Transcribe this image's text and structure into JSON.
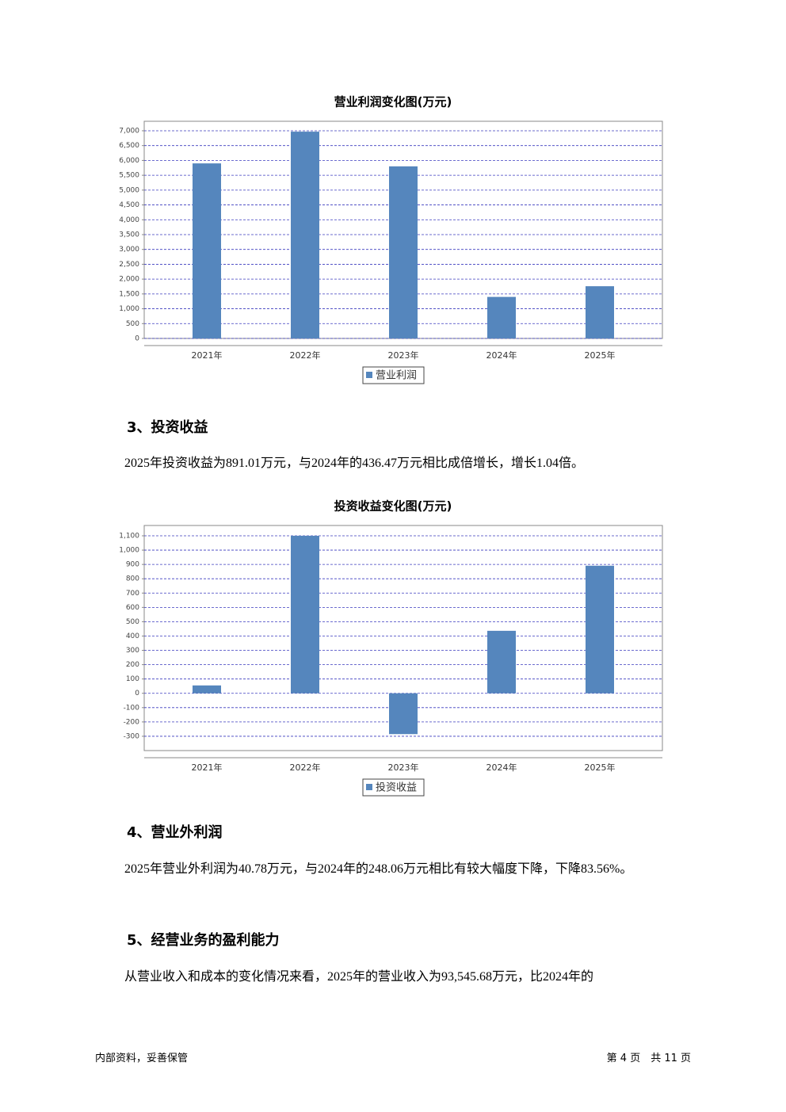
{
  "chart_data": [
    {
      "type": "bar",
      "title": "营业利润变化图(万元)",
      "categories": [
        "2021年",
        "2022年",
        "2023年",
        "2024年",
        "2025年"
      ],
      "series": [
        {
          "name": "营业利润",
          "color": "#5586bd",
          "values": [
            5900,
            6970,
            5800,
            1400,
            1760
          ]
        }
      ],
      "ylim": [
        0,
        7320
      ],
      "yticks": [
        0,
        500,
        {
          "value": 1000,
          "label": "1,000"
        },
        {
          "value": 1500,
          "label": "1,500"
        },
        {
          "value": 2000,
          "label": "2,000"
        },
        {
          "value": 2500,
          "label": "2,500"
        },
        {
          "value": 3000,
          "label": "3,000"
        },
        {
          "value": 3500,
          "label": "3,500"
        },
        {
          "value": 4000,
          "label": "4,000"
        },
        {
          "value": 4500,
          "label": "4,500"
        },
        {
          "value": 5000,
          "label": "5,000"
        },
        {
          "value": 5500,
          "label": "5,500"
        },
        {
          "value": 6000,
          "label": "6,000"
        },
        {
          "value": 6500,
          "label": "6,500"
        },
        {
          "value": 7000,
          "label": "7,000"
        }
      ],
      "grid": true
    },
    {
      "type": "bar",
      "title": "投资收益变化图(万元)",
      "categories": [
        "2021年",
        "2022年",
        "2023年",
        "2024年",
        "2025年"
      ],
      "series": [
        {
          "name": "投资收益",
          "color": "#5586bd",
          "values": [
            55,
            1100,
            -285,
            436.47,
            891.01
          ]
        }
      ],
      "ylim": [
        -400,
        1172
      ],
      "yticks": [
        -300,
        -200,
        -100,
        0,
        100,
        200,
        300,
        400,
        500,
        600,
        700,
        800,
        900,
        {
          "value": 1000,
          "label": "1,000"
        },
        {
          "value": 1100,
          "label": "1,100"
        }
      ],
      "grid": true
    }
  ],
  "document": {
    "heading3": "3、投资收益",
    "para3": "2025年投资收益为891.01万元，与2024年的436.47万元相比成倍增长，增长1.04倍。",
    "heading4": "4、营业外利润",
    "para4": "2025年营业外利润为40.78万元，与2024年的248.06万元相比有较大幅度下降，下降83.56%。",
    "heading5": "5、经营业务的盈利能力",
    "para5": "从营业收入和成本的变化情况来看，2025年的营业收入为93,545.68万元，比2024年的",
    "footer_left": "内部资料，妥善保管",
    "footer_right": "第 4 页　共 11 页"
  }
}
